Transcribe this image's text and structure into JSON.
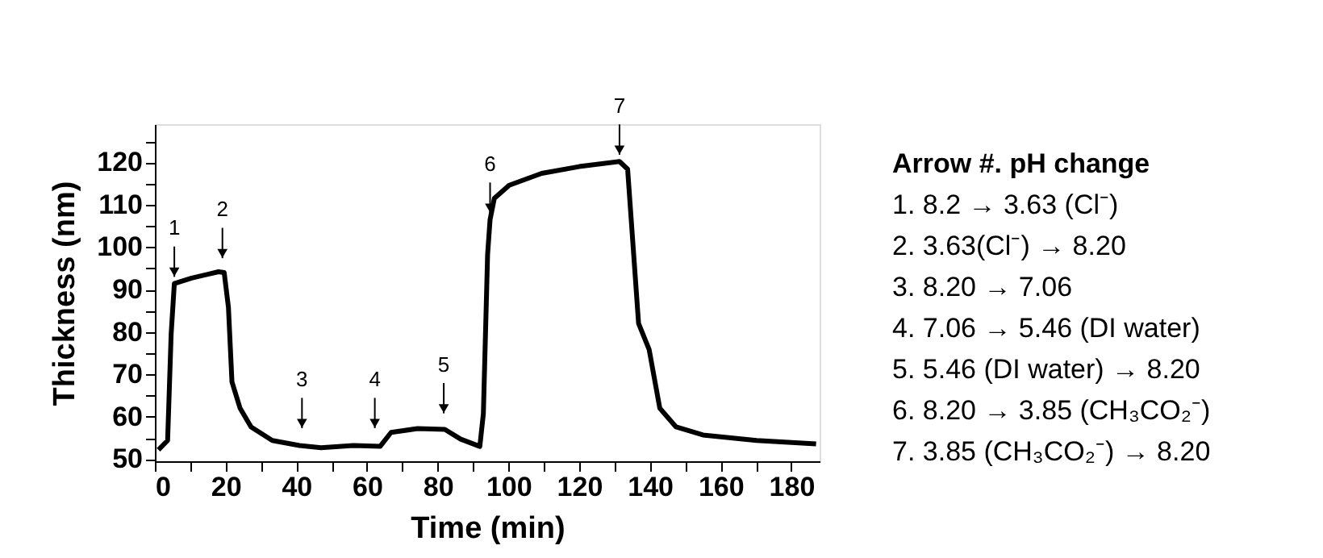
{
  "chart_data": {
    "type": "line",
    "xlabel": "Time (min)",
    "ylabel": "Thickness (nm)",
    "series": [
      {
        "color": "#000000",
        "x": [
          1.0,
          3.6,
          4.6,
          5.5,
          10.4,
          18.0,
          19.6,
          20.8,
          21.8,
          24.1,
          27.2,
          33.2,
          40.9,
          47.0,
          56.1,
          63.7,
          66.8,
          74.3,
          82.0,
          86.5,
          91.9,
          92.9,
          94.1,
          94.8,
          96.0,
          100.2,
          109.4,
          120.0,
          131.4,
          133.7,
          136.8,
          139.8,
          142.8,
          147.4,
          155.0,
          170.2,
          187.0
        ],
        "values": [
          52.2,
          54.4,
          79.5,
          91.4,
          92.7,
          94.2,
          94.0,
          85.8,
          68.2,
          62.0,
          57.6,
          54.4,
          53.2,
          52.7,
          53.2,
          53.0,
          56.3,
          57.2,
          57.0,
          54.7,
          53.0,
          60.7,
          98.3,
          106.5,
          111.5,
          114.6,
          117.4,
          119.0,
          120.2,
          118.4,
          82.0,
          75.8,
          62.0,
          57.6,
          55.7,
          54.4,
          53.6
        ]
      }
    ],
    "xlim": [
      0,
      188
    ],
    "ylim": [
      49.5,
      129
    ],
    "xticks": [
      0,
      {
        "value": 10,
        "label": null
      },
      20,
      {
        "value": 30,
        "label": null
      },
      40,
      {
        "value": 50,
        "label": null
      },
      60,
      {
        "value": 70,
        "label": null
      },
      80,
      {
        "value": 90,
        "label": null
      },
      100,
      {
        "value": 110,
        "label": null
      },
      120,
      {
        "value": 130,
        "label": null
      },
      140,
      {
        "value": 150,
        "label": null
      },
      160,
      {
        "value": 170,
        "label": null
      },
      180
    ],
    "yticks": [
      50,
      {
        "value": 55,
        "label": null
      },
      60,
      {
        "value": 65,
        "label": null
      },
      70,
      {
        "value": 75,
        "label": null
      },
      80,
      {
        "value": 85,
        "label": null
      },
      90,
      {
        "value": 95,
        "label": null
      },
      100,
      {
        "value": 105,
        "label": null
      },
      110,
      {
        "value": 115,
        "label": null
      },
      120,
      {
        "value": 125,
        "label": null
      }
    ],
    "grid": false,
    "marker": "none",
    "line_style": "solid",
    "annotations": [
      {
        "text": "1",
        "x": 5.5,
        "y": 91.4
      },
      {
        "text": "2",
        "x": 19.1,
        "y": 95.8
      },
      {
        "text": "3",
        "x": 41.6,
        "y": 55.7
      },
      {
        "text": "4",
        "x": 62.2,
        "y": 55.7
      },
      {
        "text": "5",
        "x": 81.7,
        "y": 59.2
      },
      {
        "text": "6",
        "x": 94.8,
        "y": 106.5
      },
      {
        "text": "7",
        "x": 131.4,
        "y": 120.2
      },
      "Arrow #. pH change",
      "1.     8.2 → 3.63 (Cl⁻)",
      "2.     3.63(Cl⁻) → 8.20",
      "3.     8.20 → 7.06",
      "4.     7.06 → 5.46 (DI water)",
      "5.     5.46 (DI water) → 8.20",
      "6.     8.20 → 3.85 (CH₃CO₂⁻)",
      "7.     3.85 (CH₃CO₂⁻) → 8.20"
    ]
  }
}
